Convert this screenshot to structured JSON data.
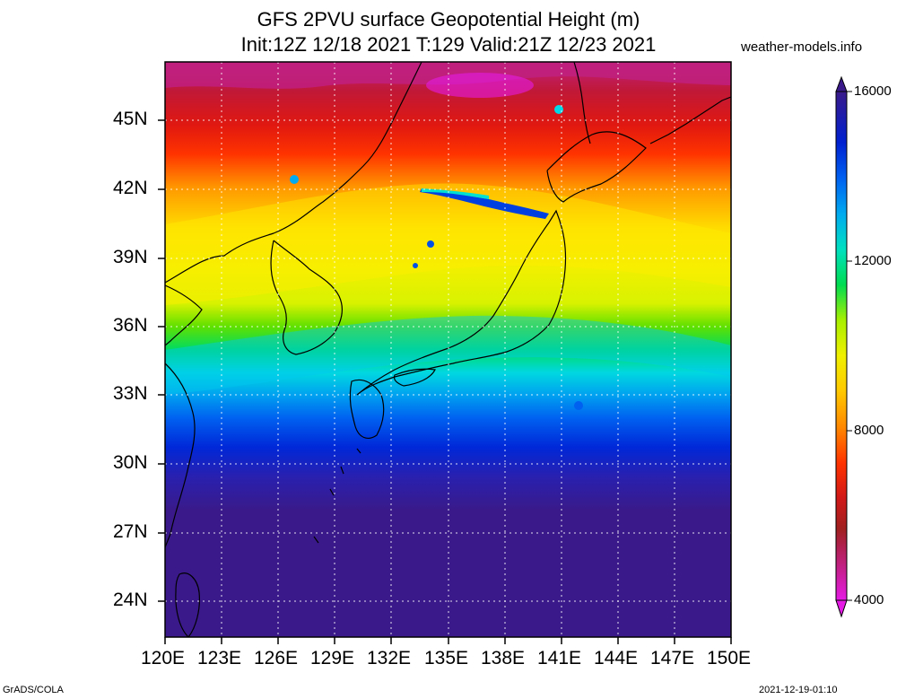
{
  "title": {
    "line1": "GFS 2PVU surface Geopotential Height (m)",
    "line2": "Init:12Z 12/18 2021 T:129 Valid:21Z 12/23 2021"
  },
  "credit": "weather-models.info",
  "footer": {
    "left": "GrADS/COLA",
    "right": "2021-12-19-01:10"
  },
  "map": {
    "lon_range": [
      120,
      150
    ],
    "lat_range": [
      22.5,
      47.5
    ],
    "lat_ticks": [
      "45N",
      "42N",
      "39N",
      "36N",
      "33N",
      "30N",
      "27N",
      "24N"
    ],
    "lon_ticks": [
      "120E",
      "123E",
      "126E",
      "129E",
      "132E",
      "135E",
      "138E",
      "141E",
      "144E",
      "147E",
      "150E"
    ],
    "grid": true
  },
  "colorbar": {
    "labels": [
      "16000",
      "12000",
      "8000",
      "4000"
    ],
    "colors": [
      "#e51be5",
      "#c0207f",
      "#a02020",
      "#d01818",
      "#ff2200",
      "#ff5a00",
      "#ff9a00",
      "#ffc800",
      "#ffee00",
      "#e0f000",
      "#a8f000",
      "#60e000",
      "#00dc50",
      "#00e8b0",
      "#00d8e8",
      "#00aaf0",
      "#0080f0",
      "#0050e8",
      "#0020d0",
      "#2820b0",
      "#3a1a8a"
    ]
  }
}
